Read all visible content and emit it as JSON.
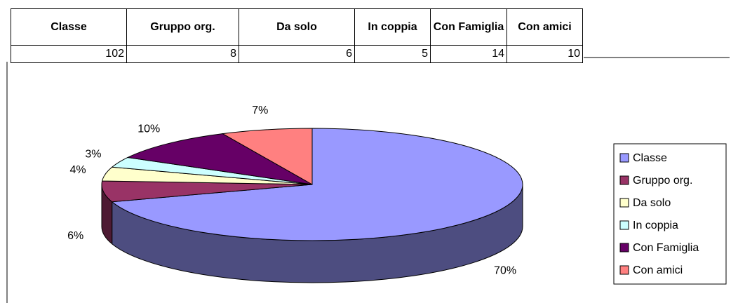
{
  "table": {
    "headers": [
      "Classe",
      "Gruppo org.",
      "Da solo",
      "In coppia",
      "Con Famiglia",
      "Con amici"
    ],
    "rows": [
      [
        102,
        8,
        6,
        5,
        14,
        10
      ]
    ]
  },
  "chart_data": {
    "type": "pie",
    "categories": [
      "Classe",
      "Gruppo org.",
      "Da solo",
      "In coppia",
      "Con Famiglia",
      "Con amici"
    ],
    "values": [
      70,
      6,
      4,
      3,
      10,
      7
    ],
    "value_labels": [
      "70%",
      "6%",
      "4%",
      "3%",
      "10%",
      "7%"
    ],
    "colors": [
      "#9999ff",
      "#993366",
      "#ffffcc",
      "#ccffff",
      "#660066",
      "#ff8080"
    ],
    "legend": "right"
  }
}
